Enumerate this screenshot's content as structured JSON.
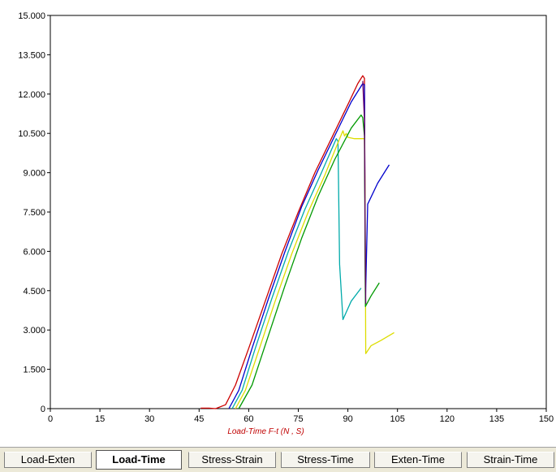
{
  "chart_data": {
    "type": "line",
    "title": "",
    "xlabel": "Load-Time F-t    (N , S)",
    "ylabel": "",
    "xlim": [
      0,
      150
    ],
    "ylim": [
      0,
      15000
    ],
    "x_ticks": [
      "0",
      "15",
      "30",
      "45",
      "60",
      "75",
      "90",
      "105",
      "120",
      "135",
      "150"
    ],
    "y_ticks": [
      "0",
      "1.500",
      "3.000",
      "4.500",
      "6.000",
      "7.500",
      "9.000",
      "10.500",
      "12.000",
      "13.500",
      "15.000"
    ],
    "grid": true,
    "series": [
      {
        "color": "#cc0000",
        "points": [
          [
            45.5,
            20
          ],
          [
            48,
            20
          ],
          [
            50,
            0
          ],
          [
            53,
            150
          ],
          [
            56,
            900
          ],
          [
            60,
            2300
          ],
          [
            65,
            4100
          ],
          [
            70,
            5900
          ],
          [
            75,
            7500
          ],
          [
            80,
            9000
          ],
          [
            85,
            10300
          ],
          [
            90,
            11600
          ],
          [
            93,
            12400
          ],
          [
            94.5,
            12700
          ],
          [
            95,
            12600
          ],
          [
            95.3,
            4000
          ]
        ]
      },
      {
        "color": "#0000cc",
        "points": [
          [
            54,
            0
          ],
          [
            57,
            700
          ],
          [
            61,
            2300
          ],
          [
            66,
            4200
          ],
          [
            71,
            6000
          ],
          [
            76,
            7700
          ],
          [
            81,
            9100
          ],
          [
            86,
            10400
          ],
          [
            91,
            11700
          ],
          [
            94.5,
            12400
          ],
          [
            95,
            12350
          ],
          [
            95.3,
            4100
          ],
          [
            96,
            7800
          ],
          [
            99,
            8600
          ],
          [
            102.5,
            9300
          ]
        ]
      },
      {
        "color": "#00aaaa",
        "points": [
          [
            55,
            0
          ],
          [
            58,
            700
          ],
          [
            62,
            2300
          ],
          [
            67,
            4200
          ],
          [
            72,
            6000
          ],
          [
            77,
            7600
          ],
          [
            82,
            9000
          ],
          [
            86.5,
            10300
          ],
          [
            87,
            10200
          ],
          [
            87.5,
            5500
          ],
          [
            88.5,
            3400
          ],
          [
            91,
            4100
          ],
          [
            94,
            4600
          ]
        ]
      },
      {
        "color": "#dddd00",
        "points": [
          [
            56,
            0
          ],
          [
            59,
            700
          ],
          [
            63,
            2200
          ],
          [
            68,
            4100
          ],
          [
            73,
            5900
          ],
          [
            78,
            7500
          ],
          [
            83,
            8900
          ],
          [
            87.5,
            10300
          ],
          [
            88.5,
            10600
          ],
          [
            89,
            10400
          ],
          [
            89.5,
            10500
          ],
          [
            90,
            10350
          ],
          [
            92,
            10300
          ],
          [
            95,
            10300
          ],
          [
            95.2,
            8000
          ],
          [
            95.4,
            2100
          ],
          [
            97,
            2400
          ],
          [
            100,
            2600
          ],
          [
            104,
            2900
          ]
        ]
      },
      {
        "color": "#009900",
        "points": [
          [
            57,
            0
          ],
          [
            61,
            900
          ],
          [
            66,
            2800
          ],
          [
            71,
            4700
          ],
          [
            76,
            6500
          ],
          [
            81,
            8100
          ],
          [
            86,
            9500
          ],
          [
            91,
            10700
          ],
          [
            94,
            11200
          ],
          [
            94.5,
            11100
          ],
          [
            95,
            10400
          ],
          [
            95.3,
            3900
          ],
          [
            97,
            4300
          ],
          [
            99.5,
            4800
          ]
        ]
      },
      {
        "color": "#660066",
        "points": [
          [
            94.5,
            12500
          ],
          [
            95,
            11000
          ],
          [
            95.2,
            7000
          ],
          [
            95.4,
            4000
          ]
        ]
      }
    ]
  },
  "tabs": [
    {
      "label": "Load-Exten",
      "active": false
    },
    {
      "label": "Load-Time",
      "active": true
    },
    {
      "label": "Stress-Strain",
      "active": false
    },
    {
      "label": "Stress-Time",
      "active": false
    },
    {
      "label": "Exten-Time",
      "active": false
    },
    {
      "label": "Strain-Time",
      "active": false
    }
  ]
}
